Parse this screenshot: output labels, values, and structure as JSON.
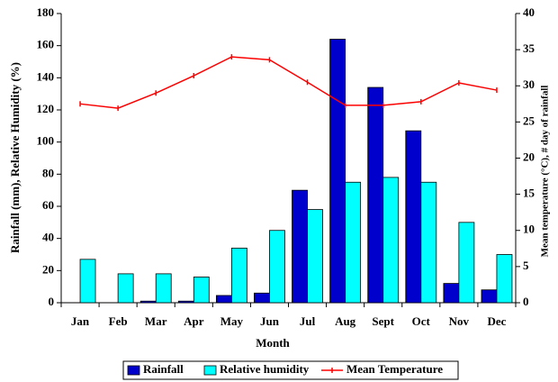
{
  "chart_data": {
    "type": "bar",
    "x_label": "Month",
    "y_label": "Rainfall (mm), Relative Humidity (%)",
    "y2_label": "Mean temperature (°C), # day of rainfall",
    "categories": [
      "Jan",
      "Feb",
      "Mar",
      "Apr",
      "May",
      "Jun",
      "Jul",
      "Aug",
      "Sept",
      "Oct",
      "Nov",
      "Dec"
    ],
    "series": [
      {
        "name": "Rainfall",
        "type": "bar",
        "color": "#0000cc",
        "values": [
          0,
          0,
          1,
          1,
          4.5,
          6,
          70,
          164,
          134,
          107,
          12,
          8
        ]
      },
      {
        "name": "Relative humidity",
        "type": "bar",
        "color": "#00ffff",
        "values": [
          27,
          18,
          18,
          16,
          34,
          45,
          58,
          75,
          78,
          75,
          50,
          30
        ]
      },
      {
        "name": "Mean Temperature",
        "type": "line",
        "axis": "y2",
        "color": "#ff0000",
        "values": [
          27.5,
          26.9,
          29,
          31.4,
          34,
          33.6,
          30.5,
          27.3,
          27.3,
          27.8,
          30.4,
          29.4
        ]
      }
    ],
    "ylim": [
      0,
      180
    ],
    "yticks": [
      0,
      20,
      40,
      60,
      80,
      100,
      120,
      140,
      160,
      180
    ],
    "y2lim": [
      0,
      40
    ],
    "y2ticks": [
      0,
      5,
      10,
      15,
      20,
      25,
      30,
      35,
      40
    ],
    "legend": "bottom"
  }
}
